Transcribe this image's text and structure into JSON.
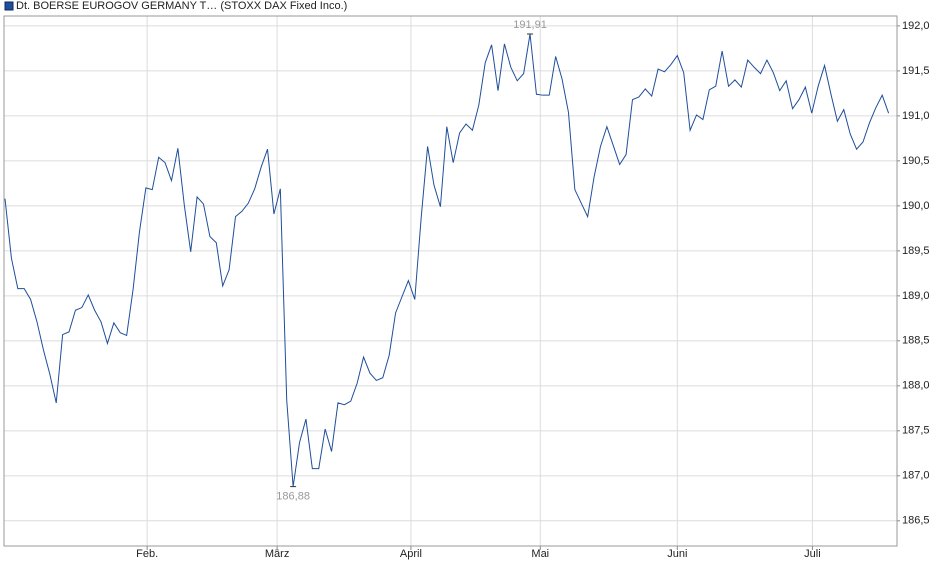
{
  "chart_data": {
    "type": "line",
    "series": [
      {
        "name": "Dt. BOERSE EUROGOV GERMANY T… (STOXX DAX Fixed Inco.)",
        "color": "#1f4e9a",
        "values": [
          190.08,
          189.42,
          189.08,
          189.08,
          188.96,
          188.71,
          188.4,
          188.13,
          187.81,
          188.57,
          188.6,
          188.84,
          188.87,
          189.01,
          188.84,
          188.71,
          188.47,
          188.7,
          188.59,
          188.56,
          189.07,
          189.71,
          190.2,
          190.18,
          190.54,
          190.48,
          190.28,
          190.64,
          190.01,
          189.49,
          190.1,
          190.02,
          189.66,
          189.59,
          189.11,
          189.29,
          189.88,
          189.94,
          190.03,
          190.19,
          190.43,
          190.63,
          189.91,
          190.19,
          187.84,
          186.88,
          187.37,
          187.63,
          187.08,
          187.08,
          187.52,
          187.27,
          187.81,
          187.79,
          187.83,
          188.03,
          188.32,
          188.14,
          188.06,
          188.09,
          188.34,
          188.81,
          188.99,
          189.17,
          188.96,
          189.87,
          190.66,
          190.23,
          189.99,
          190.88,
          190.48,
          190.81,
          190.91,
          190.84,
          191.12,
          191.59,
          191.79,
          191.28,
          191.8,
          191.54,
          191.39,
          191.47,
          191.91,
          191.24,
          191.23,
          191.23,
          191.66,
          191.41,
          191.04,
          190.18,
          190.03,
          189.88,
          190.32,
          190.66,
          190.88,
          190.67,
          190.46,
          190.57,
          191.18,
          191.21,
          191.3,
          191.22,
          191.52,
          191.49,
          191.57,
          191.67,
          191.48,
          190.84,
          191.01,
          190.96,
          191.29,
          191.33,
          191.72,
          191.33,
          191.4,
          191.32,
          191.62,
          191.54,
          191.47,
          191.62,
          191.48,
          191.28,
          191.39,
          191.08,
          191.18,
          191.32,
          191.03,
          191.33,
          191.56,
          191.24,
          190.94,
          191.07,
          190.8,
          190.63,
          190.71,
          190.92,
          191.09,
          191.23,
          191.03
        ]
      }
    ],
    "xlim": [
      0,
      139
    ],
    "xticks": [
      {
        "value": 22.2,
        "label": "Feb."
      },
      {
        "value": 42.5,
        "label": "März"
      },
      {
        "value": 63.4,
        "label": "April"
      },
      {
        "value": 83.6,
        "label": "Mai"
      },
      {
        "value": 105,
        "label": "Juni"
      },
      {
        "value": 126.1,
        "label": "Juli"
      }
    ],
    "ylim": [
      186.22,
      192.11
    ],
    "yticks": [
      {
        "value": 186.5,
        "label": "186,5"
      },
      {
        "value": 187,
        "label": "187,0"
      },
      {
        "value": 187.5,
        "label": "187,5"
      },
      {
        "value": 188,
        "label": "188,0"
      },
      {
        "value": 188.5,
        "label": "188,5"
      },
      {
        "value": 189,
        "label": "189,0"
      },
      {
        "value": 189.5,
        "label": "189,5"
      },
      {
        "value": 190,
        "label": "190,0"
      },
      {
        "value": 190.5,
        "label": "190,5"
      },
      {
        "value": 191,
        "label": "191,0"
      },
      {
        "value": 191.5,
        "label": "191,5"
      },
      {
        "value": 192,
        "label": "192,0"
      }
    ],
    "annotations": [
      {
        "value": 191.91,
        "label": "191,91"
      },
      {
        "value": 186.88,
        "label": "186,88"
      }
    ],
    "grid": true
  }
}
